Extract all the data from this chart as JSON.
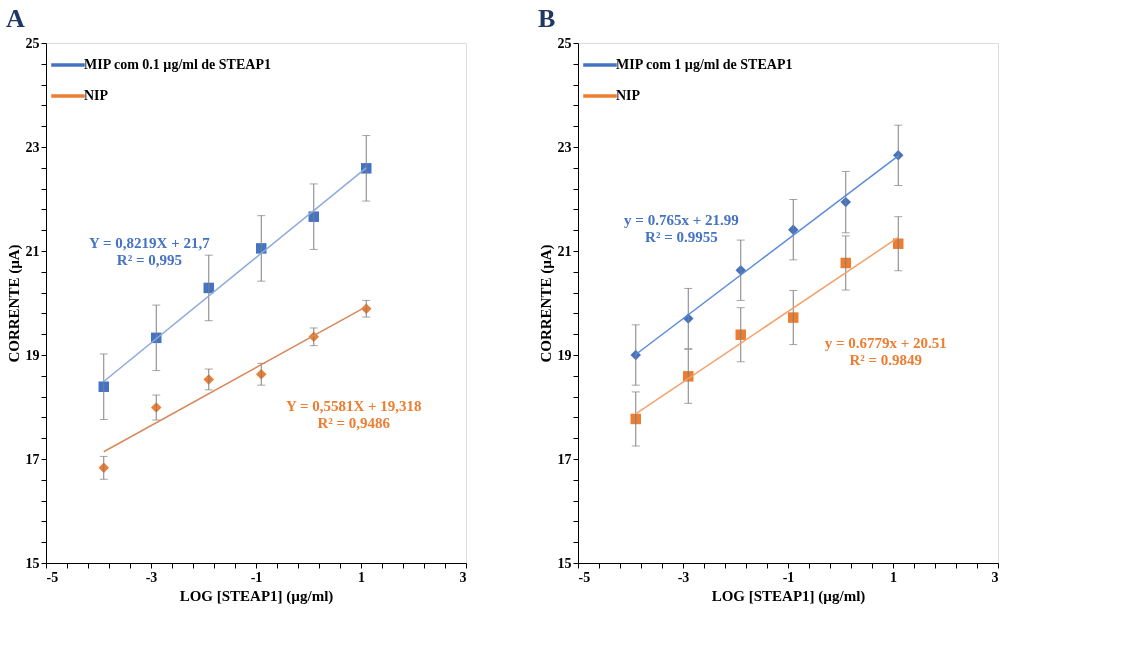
{
  "chart_data": [
    {
      "type": "scatter",
      "title": "A",
      "xlabel": "LOG [STEAP1] (µg/ml)",
      "ylabel": "CORRENTE (µA)",
      "xlim": [
        -5,
        3
      ],
      "ylim": [
        15,
        25
      ],
      "legend": "top left",
      "grid": false,
      "xticks": [
        -5,
        {
          "value": -4.6,
          "label": null
        },
        {
          "value": -4.2,
          "label": null
        },
        {
          "value": -3.8,
          "label": null
        },
        {
          "value": -3.4,
          "label": null
        },
        -3,
        {
          "value": -2.6,
          "label": null
        },
        {
          "value": -2.2,
          "label": null
        },
        {
          "value": -1.8,
          "label": null
        },
        {
          "value": -1.4,
          "label": null
        },
        -1,
        {
          "value": -0.6,
          "label": null
        },
        {
          "value": -0.2,
          "label": null
        },
        {
          "value": 0.2,
          "label": null
        },
        {
          "value": 0.6,
          "label": null
        },
        1,
        {
          "value": 1.4,
          "label": null
        },
        {
          "value": 1.8,
          "label": null
        },
        {
          "value": 2.2,
          "label": null
        },
        {
          "value": 2.6,
          "label": null
        },
        3
      ],
      "yticks": [
        15,
        {
          "value": 15.4,
          "label": null
        },
        {
          "value": 15.8,
          "label": null
        },
        {
          "value": 16.2,
          "label": null
        },
        {
          "value": 16.6,
          "label": null
        },
        17,
        {
          "value": 17.4,
          "label": null
        },
        {
          "value": 17.8,
          "label": null
        },
        {
          "value": 18.2,
          "label": null
        },
        {
          "value": 18.6,
          "label": null
        },
        19,
        {
          "value": 19.4,
          "label": null
        },
        {
          "value": 19.8,
          "label": null
        },
        {
          "value": 20.2,
          "label": null
        },
        {
          "value": 20.6,
          "label": null
        },
        21,
        {
          "value": 21.4,
          "label": null
        },
        {
          "value": 21.8,
          "label": null
        },
        {
          "value": 22.2,
          "label": null
        },
        {
          "value": 22.6,
          "label": null
        },
        23,
        {
          "value": 23.4,
          "label": null
        },
        {
          "value": 23.8,
          "label": null
        },
        {
          "value": 24.2,
          "label": null
        },
        {
          "value": 24.6,
          "label": null
        },
        25
      ],
      "series": [
        {
          "name": "MIP com 0.1 µg/ml de STEAP1",
          "marker": "square",
          "color": "#4472c4",
          "x": [
            -3.9,
            -2.9,
            -1.9,
            -0.9,
            0.1,
            1.1
          ],
          "values": [
            18.39,
            19.33,
            20.29,
            21.05,
            21.66,
            22.59
          ],
          "errors": [
            0.63,
            0.63,
            0.63,
            0.63,
            0.63,
            0.63
          ]
        },
        {
          "name": "NIP",
          "marker": "diamond",
          "color": "#ed7d31",
          "x": [
            -3.9,
            -2.9,
            -1.9,
            -0.9,
            0.1,
            1.1
          ],
          "values": [
            16.83,
            17.99,
            18.53,
            18.63,
            19.35,
            19.89
          ],
          "errors": [
            0.22,
            0.24,
            0.2,
            0.21,
            0.17,
            0.16
          ]
        },
        {
          "type": "line",
          "color": "#8eaadb",
          "x": [
            -3.9,
            1.1
          ],
          "values": [
            18.49,
            22.6
          ]
        },
        {
          "type": "line",
          "color": "#d9895a",
          "x": [
            -3.9,
            1.1
          ],
          "values": [
            17.14,
            19.93
          ]
        }
      ],
      "annotations": [
        "Y = 0,8219X + 21,7\nR² = 0,995",
        "Y = 0,5581X + 19,318\nR² = 0,9486"
      ]
    },
    {
      "type": "scatter",
      "title": "B",
      "xlabel": "LOG [STEAP1] (µg/ml)",
      "ylabel": "CORRENTE (µA)",
      "xlim": [
        -5,
        3
      ],
      "ylim": [
        15,
        25
      ],
      "legend": "top left",
      "grid": false,
      "xticks": [
        -5,
        {
          "value": -4.6,
          "label": null
        },
        {
          "value": -4.2,
          "label": null
        },
        {
          "value": -3.8,
          "label": null
        },
        {
          "value": -3.4,
          "label": null
        },
        -3,
        {
          "value": -2.6,
          "label": null
        },
        {
          "value": -2.2,
          "label": null
        },
        {
          "value": -1.8,
          "label": null
        },
        {
          "value": -1.4,
          "label": null
        },
        -1,
        {
          "value": -0.6,
          "label": null
        },
        {
          "value": -0.2,
          "label": null
        },
        {
          "value": 0.2,
          "label": null
        },
        {
          "value": 0.6,
          "label": null
        },
        1,
        {
          "value": 1.4,
          "label": null
        },
        {
          "value": 1.8,
          "label": null
        },
        {
          "value": 2.2,
          "label": null
        },
        {
          "value": 2.6,
          "label": null
        },
        3
      ],
      "yticks": [
        15,
        {
          "value": 15.4,
          "label": null
        },
        {
          "value": 15.8,
          "label": null
        },
        {
          "value": 16.2,
          "label": null
        },
        {
          "value": 16.6,
          "label": null
        },
        17,
        {
          "value": 17.4,
          "label": null
        },
        {
          "value": 17.8,
          "label": null
        },
        {
          "value": 18.2,
          "label": null
        },
        {
          "value": 18.6,
          "label": null
        },
        19,
        {
          "value": 19.4,
          "label": null
        },
        {
          "value": 19.8,
          "label": null
        },
        {
          "value": 20.2,
          "label": null
        },
        {
          "value": 20.6,
          "label": null
        },
        21,
        {
          "value": 21.4,
          "label": null
        },
        {
          "value": 21.8,
          "label": null
        },
        {
          "value": 22.2,
          "label": null
        },
        {
          "value": 22.6,
          "label": null
        },
        23,
        {
          "value": 23.4,
          "label": null
        },
        {
          "value": 23.8,
          "label": null
        },
        {
          "value": 24.2,
          "label": null
        },
        {
          "value": 24.6,
          "label": null
        },
        25
      ],
      "series": [
        {
          "name": "MIP com 1 µg/ml de STEAP1",
          "marker": "diamond",
          "color": "#4472c4",
          "x": [
            -3.9,
            -2.9,
            -1.9,
            -0.9,
            0.1,
            1.1
          ],
          "values": [
            19.0,
            19.7,
            20.63,
            21.41,
            21.94,
            22.84
          ],
          "errors": [
            0.58,
            0.58,
            0.58,
            0.58,
            0.59,
            0.58
          ]
        },
        {
          "name": "NIP",
          "marker": "square",
          "color": "#ed7d31",
          "x": [
            -3.9,
            -2.9,
            -1.9,
            -0.9,
            0.1,
            1.1
          ],
          "values": [
            17.77,
            18.59,
            19.39,
            19.72,
            20.77,
            21.14
          ],
          "errors": [
            0.52,
            0.52,
            0.52,
            0.52,
            0.52,
            0.52
          ]
        },
        {
          "type": "line",
          "color": "#5b8bd9",
          "x": [
            -3.9,
            1.1
          ],
          "values": [
            19.01,
            22.83
          ]
        },
        {
          "type": "line",
          "color": "#f4a26a",
          "x": [
            -3.9,
            1.1
          ],
          "values": [
            17.87,
            21.26
          ]
        }
      ],
      "annotations": [
        "y = 0.765x + 21.99\nR² = 0.9955",
        "y = 0.6779x + 20.51\nR² = 0.9849"
      ]
    }
  ]
}
